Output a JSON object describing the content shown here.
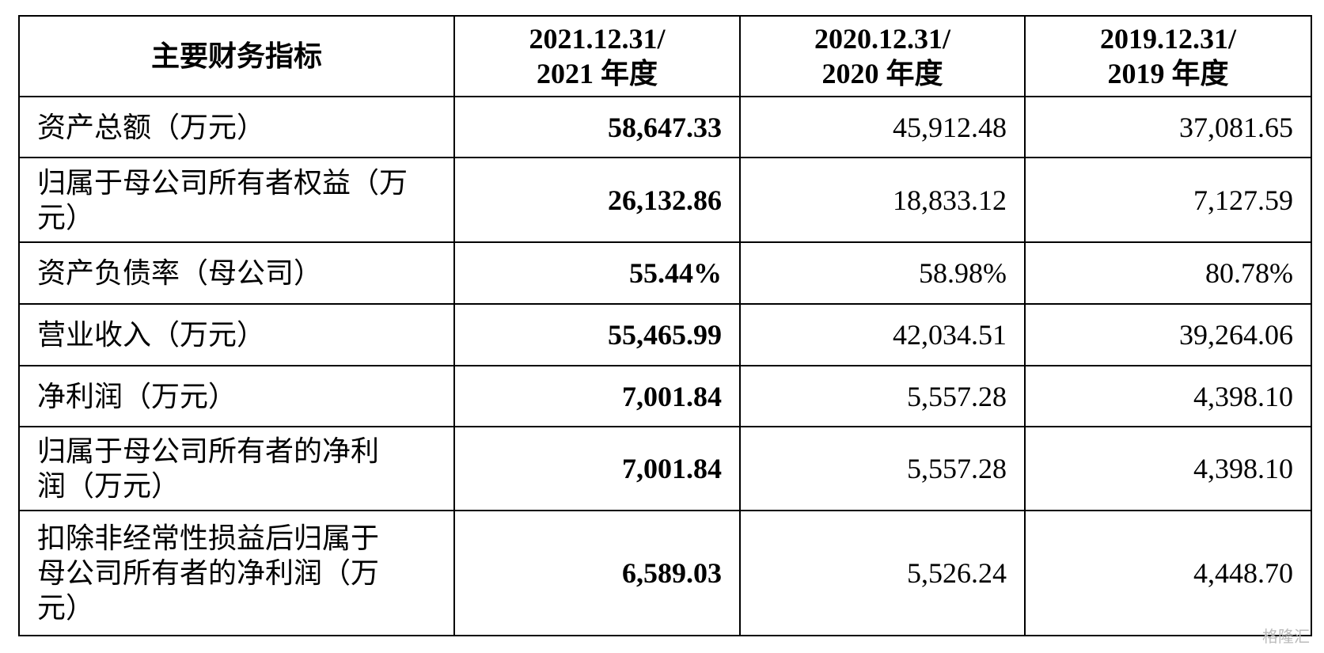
{
  "table": {
    "header": [
      [
        "主要财务指标"
      ],
      [
        "2021.12.31/",
        "2021 年度"
      ],
      [
        "2020.12.31/",
        "2020 年度"
      ],
      [
        "2019.12.31/",
        "2019 年度"
      ]
    ],
    "rows": [
      [
        [
          "资产总额（万元）"
        ],
        "58,647.33",
        "45,912.48",
        "37,081.65"
      ],
      [
        [
          "归属于母公司所有者权益（万",
          "元）"
        ],
        "26,132.86",
        "18,833.12",
        "7,127.59"
      ],
      [
        [
          "资产负债率（母公司）"
        ],
        "55.44%",
        "58.98%",
        "80.78%"
      ],
      [
        [
          "营业收入（万元）"
        ],
        "55,465.99",
        "42,034.51",
        "39,264.06"
      ],
      [
        [
          "净利润（万元）"
        ],
        "7,001.84",
        "5,557.28",
        "4,398.10"
      ],
      [
        [
          "归属于母公司所有者的净利",
          "润（万元）"
        ],
        "7,001.84",
        "5,557.28",
        "4,398.10"
      ],
      [
        [
          "扣除非经常性损益后归属于",
          "母公司所有者的净利润（万",
          "元）"
        ],
        "6,589.03",
        "5,526.24",
        "4,448.70"
      ]
    ]
  },
  "watermark": "格隆汇"
}
